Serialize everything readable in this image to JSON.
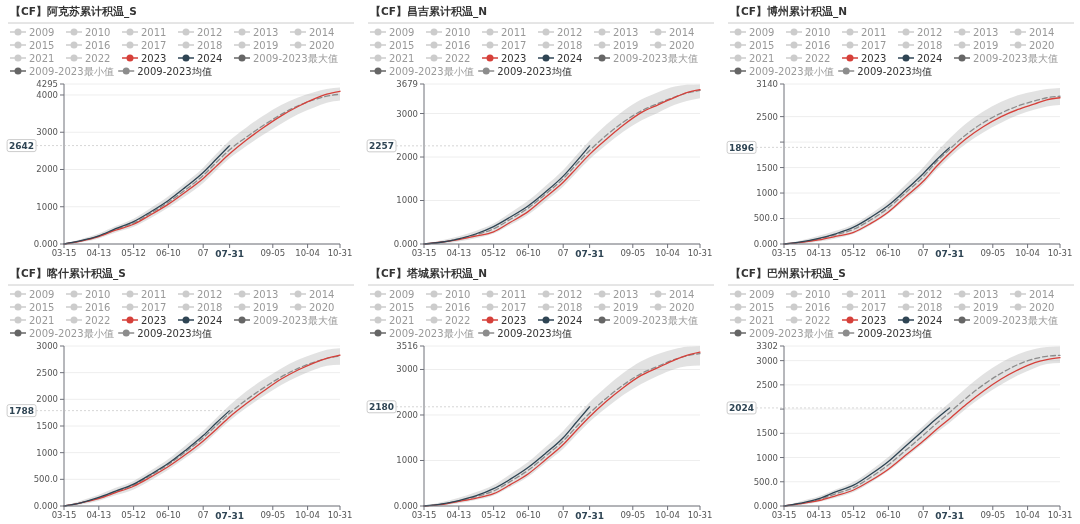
{
  "chart_data": [
    {
      "type": "line",
      "title": "【CF】阿克苏累计积温_S",
      "xlim": [
        "--03-15",
        "--10-31"
      ],
      "xticks": [
        {
          "value": "--03-15",
          "label": "03-15"
        },
        {
          "value": "--04-13",
          "label": "04-13"
        },
        {
          "value": "--05-12",
          "label": "05-12"
        },
        {
          "value": "--06-10",
          "label": "06-10"
        },
        {
          "value": "--07-09",
          "label": "07"
        },
        {
          "value": "--07-31",
          "label": "07-31"
        },
        {
          "value": "--09-05",
          "label": "09-05"
        },
        {
          "value": "--10-04",
          "label": "10-04"
        },
        {
          "value": "--10-31",
          "label": "10-31"
        }
      ],
      "ylim": [
        0,
        4295
      ],
      "yticks": [
        {
          "value": 0,
          "label": "0.000"
        },
        1000,
        2000,
        3000,
        4000,
        4295
      ],
      "grid": "y",
      "legend": "top",
      "annotations": [
        {
          "text": "2642",
          "x": "--07-31",
          "y": 2642
        }
      ],
      "series": [
        {
          "name": "2009",
          "color": "#cccccc"
        },
        {
          "name": "2010",
          "color": "#cccccc"
        },
        {
          "name": "2011",
          "color": "#cccccc"
        },
        {
          "name": "2012",
          "color": "#cccccc"
        },
        {
          "name": "2013",
          "color": "#cccccc"
        },
        {
          "name": "2014",
          "color": "#cccccc"
        },
        {
          "name": "2015",
          "color": "#cccccc"
        },
        {
          "name": "2016",
          "color": "#cccccc"
        },
        {
          "name": "2017",
          "color": "#cccccc"
        },
        {
          "name": "2018",
          "color": "#cccccc"
        },
        {
          "name": "2019",
          "color": "#cccccc"
        },
        {
          "name": "2020",
          "color": "#cccccc"
        },
        {
          "name": "2021",
          "color": "#cccccc"
        },
        {
          "name": "2022",
          "color": "#cccccc"
        },
        {
          "name": "2023",
          "color": "#d6403a",
          "x": [
            "--03-15",
            "--03-29",
            "--04-13",
            "--04-27",
            "--05-12",
            "--05-26",
            "--06-10",
            "--06-24",
            "--07-09",
            "--07-20",
            "--07-31",
            "--08-14",
            "--08-28",
            "--09-12",
            "--09-26",
            "--10-10",
            "--10-20",
            "--10-31"
          ],
          "values": [
            0,
            80,
            200,
            370,
            530,
            780,
            1070,
            1390,
            1760,
            2090,
            2420,
            2790,
            3120,
            3440,
            3690,
            3900,
            4020,
            4100
          ]
        },
        {
          "name": "2024",
          "color": "#2f4554",
          "x": [
            "--03-15",
            "--03-29",
            "--04-13",
            "--04-27",
            "--05-12",
            "--05-26",
            "--06-10",
            "--06-24",
            "--07-09",
            "--07-20",
            "--07-31"
          ],
          "values": [
            0,
            90,
            220,
            410,
            600,
            860,
            1170,
            1520,
            1920,
            2280,
            2642
          ]
        },
        {
          "name": "2009-2023最大值",
          "color": "#666666"
        },
        {
          "name": "2009-2023最小值",
          "color": "#666666"
        },
        {
          "name": "2009-2023均值",
          "color": "#8c8c8c",
          "line_style": "dashed",
          "x": [
            "--03-15",
            "--03-29",
            "--04-13",
            "--04-27",
            "--05-12",
            "--05-26",
            "--06-10",
            "--06-24",
            "--07-09",
            "--07-20",
            "--07-31",
            "--08-14",
            "--08-28",
            "--09-12",
            "--09-26",
            "--10-10",
            "--10-20",
            "--10-31"
          ],
          "values": [
            0,
            80,
            210,
            390,
            560,
            820,
            1120,
            1450,
            1840,
            2190,
            2530,
            2870,
            3180,
            3480,
            3710,
            3880,
            3970,
            4020
          ],
          "upper": [
            0,
            130,
            280,
            480,
            680,
            960,
            1280,
            1640,
            2050,
            2420,
            2780,
            3130,
            3440,
            3730,
            3930,
            4080,
            4160,
            4200
          ],
          "lower": [
            0,
            50,
            150,
            310,
            460,
            690,
            980,
            1280,
            1640,
            1980,
            2300,
            2630,
            2930,
            3230,
            3480,
            3670,
            3790,
            3850
          ]
        }
      ]
    },
    {
      "type": "line",
      "title": "【CF】昌吉累计积温_N",
      "xlim": [
        "--03-15",
        "--10-31"
      ],
      "xticks": [
        {
          "value": "--03-15",
          "label": "03-15"
        },
        {
          "value": "--04-13",
          "label": "04-13"
        },
        {
          "value": "--05-12",
          "label": "05-12"
        },
        {
          "value": "--06-10",
          "label": "06-10"
        },
        {
          "value": "--07-09",
          "label": "07"
        },
        {
          "value": "--07-31",
          "label": "07-31"
        },
        {
          "value": "--09-05",
          "label": "09-05"
        },
        {
          "value": "--10-04",
          "label": "10-04"
        },
        {
          "value": "--10-31",
          "label": "10-31"
        }
      ],
      "ylim": [
        0,
        3679
      ],
      "yticks": [
        {
          "value": 0,
          "label": "0.000"
        },
        1000,
        2000,
        3000,
        3679
      ],
      "grid": "y",
      "legend": "top",
      "annotations": [
        {
          "text": "2257",
          "x": "--07-31",
          "y": 2257
        }
      ],
      "series": [
        {
          "name": "2009",
          "color": "#cccccc"
        },
        {
          "name": "2010",
          "color": "#cccccc"
        },
        {
          "name": "2011",
          "color": "#cccccc"
        },
        {
          "name": "2012",
          "color": "#cccccc"
        },
        {
          "name": "2013",
          "color": "#cccccc"
        },
        {
          "name": "2014",
          "color": "#cccccc"
        },
        {
          "name": "2015",
          "color": "#cccccc"
        },
        {
          "name": "2016",
          "color": "#cccccc"
        },
        {
          "name": "2017",
          "color": "#cccccc"
        },
        {
          "name": "2018",
          "color": "#cccccc"
        },
        {
          "name": "2019",
          "color": "#cccccc"
        },
        {
          "name": "2020",
          "color": "#cccccc"
        },
        {
          "name": "2021",
          "color": "#cccccc"
        },
        {
          "name": "2022",
          "color": "#cccccc"
        },
        {
          "name": "2023",
          "color": "#d6403a",
          "x": [
            "--03-15",
            "--03-29",
            "--04-13",
            "--04-27",
            "--05-12",
            "--05-26",
            "--06-10",
            "--06-24",
            "--07-09",
            "--07-20",
            "--07-31",
            "--08-14",
            "--08-28",
            "--09-12",
            "--09-26",
            "--10-10",
            "--10-20",
            "--10-31"
          ],
          "values": [
            0,
            40,
            100,
            180,
            280,
            500,
            750,
            1070,
            1420,
            1740,
            2060,
            2410,
            2730,
            3020,
            3200,
            3370,
            3480,
            3550
          ]
        },
        {
          "name": "2024",
          "color": "#2f4554",
          "x": [
            "--03-15",
            "--03-29",
            "--04-13",
            "--04-27",
            "--05-12",
            "--05-26",
            "--06-10",
            "--06-24",
            "--07-09",
            "--07-20",
            "--07-31"
          ],
          "values": [
            0,
            40,
            120,
            230,
            400,
            620,
            880,
            1190,
            1560,
            1900,
            2257
          ]
        },
        {
          "name": "2009-2023最大值",
          "color": "#666666"
        },
        {
          "name": "2009-2023最小值",
          "color": "#666666"
        },
        {
          "name": "2009-2023均值",
          "color": "#8c8c8c",
          "line_style": "dashed",
          "x": [
            "--03-15",
            "--03-29",
            "--04-13",
            "--04-27",
            "--05-12",
            "--05-26",
            "--06-10",
            "--06-24",
            "--07-09",
            "--07-20",
            "--07-31",
            "--08-14",
            "--08-28",
            "--09-12",
            "--09-26",
            "--10-10",
            "--10-20",
            "--10-31"
          ],
          "values": [
            0,
            40,
            120,
            210,
            350,
            570,
            830,
            1140,
            1500,
            1830,
            2150,
            2500,
            2800,
            3060,
            3230,
            3380,
            3470,
            3530
          ],
          "upper": [
            0,
            80,
            180,
            300,
            470,
            720,
            1000,
            1330,
            1700,
            2040,
            2380,
            2750,
            3060,
            3320,
            3490,
            3620,
            3660,
            3670
          ],
          "lower": [
            0,
            10,
            60,
            130,
            240,
            440,
            680,
            980,
            1320,
            1640,
            1950,
            2280,
            2580,
            2840,
            3020,
            3200,
            3290,
            3350
          ]
        }
      ]
    },
    {
      "type": "line",
      "title": "【CF】博州累计积温_N",
      "xlim": [
        "--03-15",
        "--10-31"
      ],
      "xticks": [
        {
          "value": "--03-15",
          "label": "03-15"
        },
        {
          "value": "--04-13",
          "label": "04-13"
        },
        {
          "value": "--05-12",
          "label": "05-12"
        },
        {
          "value": "--06-10",
          "label": "06-10"
        },
        {
          "value": "--07-09",
          "label": "07"
        },
        {
          "value": "--07-31",
          "label": "07-31"
        },
        {
          "value": "--09-05",
          "label": "09-05"
        },
        {
          "value": "--10-04",
          "label": "10-04"
        },
        {
          "value": "--10-31",
          "label": "10-31"
        }
      ],
      "ylim": [
        0,
        3140
      ],
      "yticks": [
        {
          "value": 0,
          "label": "0.000"
        },
        {
          "value": 500,
          "label": "500.0"
        },
        1000,
        1500,
        {
          "value": 2000,
          "label": null
        },
        2500,
        3140
      ],
      "grid": "y",
      "legend": "top",
      "annotations": [
        {
          "text": "1896",
          "x": "--07-31",
          "y": 1896
        }
      ],
      "series": [
        {
          "name": "2009",
          "color": "#cccccc"
        },
        {
          "name": "2010",
          "color": "#cccccc"
        },
        {
          "name": "2011",
          "color": "#cccccc"
        },
        {
          "name": "2012",
          "color": "#cccccc"
        },
        {
          "name": "2013",
          "color": "#cccccc"
        },
        {
          "name": "2014",
          "color": "#cccccc"
        },
        {
          "name": "2015",
          "color": "#cccccc"
        },
        {
          "name": "2016",
          "color": "#cccccc"
        },
        {
          "name": "2017",
          "color": "#cccccc"
        },
        {
          "name": "2018",
          "color": "#cccccc"
        },
        {
          "name": "2019",
          "color": "#cccccc"
        },
        {
          "name": "2020",
          "color": "#cccccc"
        },
        {
          "name": "2021",
          "color": "#cccccc"
        },
        {
          "name": "2022",
          "color": "#cccccc"
        },
        {
          "name": "2023",
          "color": "#d6403a",
          "x": [
            "--03-15",
            "--03-29",
            "--04-13",
            "--04-27",
            "--05-12",
            "--05-26",
            "--06-10",
            "--06-24",
            "--07-09",
            "--07-20",
            "--07-31",
            "--08-14",
            "--08-28",
            "--09-12",
            "--09-26",
            "--10-10",
            "--10-20",
            "--10-31"
          ],
          "values": [
            0,
            30,
            80,
            150,
            230,
            400,
            630,
            920,
            1230,
            1520,
            1780,
            2070,
            2300,
            2500,
            2640,
            2750,
            2830,
            2870
          ]
        },
        {
          "name": "2024",
          "color": "#2f4554",
          "x": [
            "--03-15",
            "--03-29",
            "--04-13",
            "--04-27",
            "--05-12",
            "--05-26",
            "--06-10",
            "--06-24",
            "--07-09",
            "--07-20",
            "--07-31"
          ],
          "values": [
            0,
            40,
            110,
            200,
            330,
            520,
            760,
            1050,
            1380,
            1650,
            1896
          ]
        },
        {
          "name": "2009-2023最大值",
          "color": "#666666"
        },
        {
          "name": "2009-2023最小值",
          "color": "#666666"
        },
        {
          "name": "2009-2023均值",
          "color": "#8c8c8c",
          "line_style": "dashed",
          "x": [
            "--03-15",
            "--03-29",
            "--04-13",
            "--04-27",
            "--05-12",
            "--05-26",
            "--06-10",
            "--06-24",
            "--07-09",
            "--07-20",
            "--07-31",
            "--08-14",
            "--08-28",
            "--09-12",
            "--09-26",
            "--10-10",
            "--10-20",
            "--10-31"
          ],
          "values": [
            0,
            30,
            100,
            180,
            290,
            470,
            710,
            1000,
            1320,
            1610,
            1860,
            2150,
            2380,
            2570,
            2710,
            2810,
            2870,
            2900
          ],
          "upper": [
            0,
            70,
            160,
            260,
            390,
            590,
            850,
            1160,
            1500,
            1800,
            2070,
            2370,
            2600,
            2790,
            2920,
            3000,
            3040,
            3060
          ],
          "lower": [
            0,
            10,
            50,
            110,
            200,
            370,
            600,
            870,
            1170,
            1450,
            1700,
            1970,
            2190,
            2380,
            2530,
            2640,
            2700,
            2730
          ]
        }
      ]
    },
    {
      "type": "line",
      "title": "【CF】喀什累计积温_S",
      "xlim": [
        "--03-15",
        "--10-31"
      ],
      "xticks": [
        {
          "value": "--03-15",
          "label": "03-15"
        },
        {
          "value": "--04-13",
          "label": "04-13"
        },
        {
          "value": "--05-12",
          "label": "05-12"
        },
        {
          "value": "--06-10",
          "label": "06-10"
        },
        {
          "value": "--07-09",
          "label": "07"
        },
        {
          "value": "--07-31",
          "label": "07-31"
        },
        {
          "value": "--09-05",
          "label": "09-05"
        },
        {
          "value": "--10-04",
          "label": "10-04"
        },
        {
          "value": "--10-31",
          "label": "10-31"
        }
      ],
      "ylim": [
        0,
        3000
      ],
      "yticks": [
        {
          "value": 0,
          "label": "0.000"
        },
        {
          "value": 500,
          "label": "500.0"
        },
        1000,
        1500,
        2000,
        2500,
        3000
      ],
      "grid": "y",
      "legend": "top",
      "annotations": [
        {
          "text": "1788",
          "x": "--07-31",
          "y": 1788
        }
      ],
      "series": [
        {
          "name": "2009",
          "color": "#cccccc"
        },
        {
          "name": "2010",
          "color": "#cccccc"
        },
        {
          "name": "2011",
          "color": "#cccccc"
        },
        {
          "name": "2012",
          "color": "#cccccc"
        },
        {
          "name": "2013",
          "color": "#cccccc"
        },
        {
          "name": "2014",
          "color": "#cccccc"
        },
        {
          "name": "2015",
          "color": "#cccccc"
        },
        {
          "name": "2016",
          "color": "#cccccc"
        },
        {
          "name": "2017",
          "color": "#cccccc"
        },
        {
          "name": "2018",
          "color": "#cccccc"
        },
        {
          "name": "2019",
          "color": "#cccccc"
        },
        {
          "name": "2020",
          "color": "#cccccc"
        },
        {
          "name": "2021",
          "color": "#cccccc"
        },
        {
          "name": "2022",
          "color": "#cccccc"
        },
        {
          "name": "2023",
          "color": "#d6403a",
          "x": [
            "--03-15",
            "--03-29",
            "--04-13",
            "--04-27",
            "--05-12",
            "--05-26",
            "--06-10",
            "--06-24",
            "--07-09",
            "--07-20",
            "--07-31",
            "--08-14",
            "--08-28",
            "--09-12",
            "--09-26",
            "--10-10",
            "--10-20",
            "--10-31"
          ],
          "values": [
            0,
            60,
            140,
            250,
            370,
            540,
            740,
            960,
            1220,
            1440,
            1670,
            1920,
            2150,
            2380,
            2550,
            2690,
            2770,
            2830
          ]
        },
        {
          "name": "2024",
          "color": "#2f4554",
          "x": [
            "--03-15",
            "--03-29",
            "--04-13",
            "--04-27",
            "--05-12",
            "--05-26",
            "--06-10",
            "--06-24",
            "--07-09",
            "--07-20",
            "--07-31"
          ],
          "values": [
            0,
            60,
            160,
            280,
            410,
            590,
            800,
            1040,
            1320,
            1560,
            1788
          ]
        },
        {
          "name": "2009-2023最大值",
          "color": "#666666"
        },
        {
          "name": "2009-2023最小值",
          "color": "#666666"
        },
        {
          "name": "2009-2023均值",
          "color": "#8c8c8c",
          "line_style": "dashed",
          "x": [
            "--03-15",
            "--03-29",
            "--04-13",
            "--04-27",
            "--05-12",
            "--05-26",
            "--06-10",
            "--06-24",
            "--07-09",
            "--07-20",
            "--07-31",
            "--08-14",
            "--08-28",
            "--09-12",
            "--09-26",
            "--10-10",
            "--10-20",
            "--10-31"
          ],
          "values": [
            0,
            60,
            150,
            270,
            390,
            570,
            780,
            1010,
            1280,
            1510,
            1740,
            1990,
            2210,
            2420,
            2580,
            2700,
            2770,
            2810
          ],
          "upper": [
            0,
            100,
            210,
            340,
            470,
            660,
            880,
            1130,
            1410,
            1650,
            1890,
            2150,
            2370,
            2580,
            2740,
            2860,
            2930,
            2960
          ],
          "lower": [
            0,
            30,
            100,
            200,
            310,
            480,
            680,
            900,
            1150,
            1380,
            1600,
            1840,
            2060,
            2270,
            2430,
            2560,
            2630,
            2650
          ]
        }
      ]
    },
    {
      "type": "line",
      "title": "【CF】塔城累计积温_N",
      "xlim": [
        "--03-15",
        "--10-31"
      ],
      "xticks": [
        {
          "value": "--03-15",
          "label": "03-15"
        },
        {
          "value": "--04-13",
          "label": "04-13"
        },
        {
          "value": "--05-12",
          "label": "05-12"
        },
        {
          "value": "--06-10",
          "label": "06-10"
        },
        {
          "value": "--07-09",
          "label": "07"
        },
        {
          "value": "--07-31",
          "label": "07-31"
        },
        {
          "value": "--09-05",
          "label": "09-05"
        },
        {
          "value": "--10-04",
          "label": "10-04"
        },
        {
          "value": "--10-31",
          "label": "10-31"
        }
      ],
      "ylim": [
        0,
        3516
      ],
      "yticks": [
        {
          "value": 0,
          "label": "0.000"
        },
        1000,
        2000,
        3000,
        3516
      ],
      "grid": "y",
      "legend": "top",
      "annotations": [
        {
          "text": "2180",
          "x": "--07-31",
          "y": 2180
        }
      ],
      "series": [
        {
          "name": "2009",
          "color": "#cccccc"
        },
        {
          "name": "2010",
          "color": "#cccccc"
        },
        {
          "name": "2011",
          "color": "#cccccc"
        },
        {
          "name": "2012",
          "color": "#cccccc"
        },
        {
          "name": "2013",
          "color": "#cccccc"
        },
        {
          "name": "2014",
          "color": "#cccccc"
        },
        {
          "name": "2015",
          "color": "#cccccc"
        },
        {
          "name": "2016",
          "color": "#cccccc"
        },
        {
          "name": "2017",
          "color": "#cccccc"
        },
        {
          "name": "2018",
          "color": "#cccccc"
        },
        {
          "name": "2019",
          "color": "#cccccc"
        },
        {
          "name": "2020",
          "color": "#cccccc"
        },
        {
          "name": "2021",
          "color": "#cccccc"
        },
        {
          "name": "2022",
          "color": "#cccccc"
        },
        {
          "name": "2023",
          "color": "#d6403a",
          "x": [
            "--03-15",
            "--03-29",
            "--04-13",
            "--04-27",
            "--05-12",
            "--05-26",
            "--06-10",
            "--06-24",
            "--07-09",
            "--07-20",
            "--07-31",
            "--08-14",
            "--08-28",
            "--09-12",
            "--09-26",
            "--10-10",
            "--10-20",
            "--10-31"
          ],
          "values": [
            0,
            30,
            100,
            170,
            270,
            470,
            710,
            1010,
            1350,
            1660,
            1960,
            2300,
            2600,
            2870,
            3040,
            3210,
            3310,
            3380
          ]
        },
        {
          "name": "2024",
          "color": "#2f4554",
          "x": [
            "--03-15",
            "--03-29",
            "--04-13",
            "--04-27",
            "--05-12",
            "--05-26",
            "--06-10",
            "--06-24",
            "--07-09",
            "--07-20",
            "--07-31"
          ],
          "values": [
            0,
            40,
            120,
            220,
            380,
            590,
            850,
            1150,
            1500,
            1840,
            2180
          ]
        },
        {
          "name": "2009-2023最大值",
          "color": "#666666"
        },
        {
          "name": "2009-2023最小值",
          "color": "#666666"
        },
        {
          "name": "2009-2023均值",
          "color": "#8c8c8c",
          "line_style": "dashed",
          "x": [
            "--03-15",
            "--03-29",
            "--04-13",
            "--04-27",
            "--05-12",
            "--05-26",
            "--06-10",
            "--06-24",
            "--07-09",
            "--07-20",
            "--07-31",
            "--08-14",
            "--08-28",
            "--09-12",
            "--09-26",
            "--10-10",
            "--10-20",
            "--10-31"
          ],
          "values": [
            0,
            40,
            110,
            200,
            330,
            540,
            790,
            1090,
            1430,
            1740,
            2040,
            2370,
            2660,
            2910,
            3070,
            3220,
            3300,
            3350
          ],
          "upper": [
            0,
            80,
            180,
            300,
            460,
            700,
            970,
            1290,
            1650,
            1970,
            2280,
            2620,
            2920,
            3180,
            3340,
            3450,
            3500,
            3510
          ],
          "lower": [
            0,
            10,
            60,
            130,
            230,
            420,
            650,
            940,
            1260,
            1560,
            1850,
            2160,
            2440,
            2680,
            2860,
            3010,
            3070,
            3090
          ]
        }
      ]
    },
    {
      "type": "line",
      "title": "【CF】巴州累计积温_S",
      "xlim": [
        "--03-15",
        "--10-31"
      ],
      "xticks": [
        {
          "value": "--03-15",
          "label": "03-15"
        },
        {
          "value": "--04-13",
          "label": "04-13"
        },
        {
          "value": "--05-12",
          "label": "05-12"
        },
        {
          "value": "--06-10",
          "label": "06-10"
        },
        {
          "value": "--07-09",
          "label": "07"
        },
        {
          "value": "--07-31",
          "label": "07-31"
        },
        {
          "value": "--09-05",
          "label": "09-05"
        },
        {
          "value": "--10-04",
          "label": "10-04"
        },
        {
          "value": "--10-31",
          "label": "10-31"
        }
      ],
      "ylim": [
        0,
        3302
      ],
      "yticks": [
        {
          "value": 0,
          "label": "0.000"
        },
        {
          "value": 500,
          "label": "500.0"
        },
        1000,
        1500,
        {
          "value": 2000,
          "label": null
        },
        2500,
        3000,
        3302
      ],
      "grid": "y",
      "legend": "top",
      "annotations": [
        {
          "text": "2024",
          "x": "--07-31",
          "y": 2024
        }
      ],
      "series": [
        {
          "name": "2009",
          "color": "#cccccc"
        },
        {
          "name": "2010",
          "color": "#cccccc"
        },
        {
          "name": "2011",
          "color": "#cccccc"
        },
        {
          "name": "2012",
          "color": "#cccccc"
        },
        {
          "name": "2013",
          "color": "#cccccc"
        },
        {
          "name": "2014",
          "color": "#cccccc"
        },
        {
          "name": "2015",
          "color": "#cccccc"
        },
        {
          "name": "2016",
          "color": "#cccccc"
        },
        {
          "name": "2017",
          "color": "#cccccc"
        },
        {
          "name": "2018",
          "color": "#cccccc"
        },
        {
          "name": "2019",
          "color": "#cccccc"
        },
        {
          "name": "2020",
          "color": "#cccccc"
        },
        {
          "name": "2021",
          "color": "#cccccc"
        },
        {
          "name": "2022",
          "color": "#cccccc"
        },
        {
          "name": "2023",
          "color": "#d6403a",
          "x": [
            "--03-15",
            "--03-29",
            "--04-13",
            "--04-27",
            "--05-12",
            "--05-26",
            "--06-10",
            "--06-24",
            "--07-09",
            "--07-20",
            "--07-31",
            "--08-14",
            "--08-28",
            "--09-12",
            "--09-26",
            "--10-10",
            "--10-20",
            "--10-31"
          ],
          "values": [
            0,
            50,
            110,
            210,
            330,
            520,
            760,
            1040,
            1340,
            1580,
            1800,
            2100,
            2370,
            2620,
            2810,
            2960,
            3020,
            3060
          ]
        },
        {
          "name": "2024",
          "color": "#2f4554",
          "x": [
            "--03-15",
            "--03-29",
            "--04-13",
            "--04-27",
            "--05-12",
            "--05-26",
            "--06-10",
            "--06-24",
            "--07-09",
            "--07-20",
            "--07-31"
          ],
          "values": [
            0,
            60,
            150,
            290,
            430,
            650,
            920,
            1230,
            1560,
            1800,
            2024
          ]
        },
        {
          "name": "2009-2023最大值",
          "color": "#666666"
        },
        {
          "name": "2009-2023最小值",
          "color": "#666666"
        },
        {
          "name": "2009-2023均值",
          "color": "#8c8c8c",
          "line_style": "dashed",
          "x": [
            "--03-15",
            "--03-29",
            "--04-13",
            "--04-27",
            "--05-12",
            "--05-26",
            "--06-10",
            "--06-24",
            "--07-09",
            "--07-20",
            "--07-31",
            "--08-14",
            "--08-28",
            "--09-12",
            "--09-26",
            "--10-10",
            "--10-20",
            "--10-31"
          ],
          "values": [
            0,
            50,
            130,
            250,
            380,
            590,
            850,
            1140,
            1460,
            1700,
            1930,
            2230,
            2500,
            2740,
            2920,
            3040,
            3090,
            3110
          ],
          "upper": [
            0,
            100,
            200,
            340,
            500,
            730,
            1010,
            1320,
            1650,
            1900,
            2130,
            2440,
            2720,
            2960,
            3130,
            3240,
            3280,
            3290
          ],
          "lower": [
            0,
            20,
            80,
            170,
            290,
            480,
            720,
            990,
            1290,
            1510,
            1720,
            2010,
            2270,
            2510,
            2700,
            2850,
            2930,
            2950
          ]
        }
      ]
    }
  ]
}
